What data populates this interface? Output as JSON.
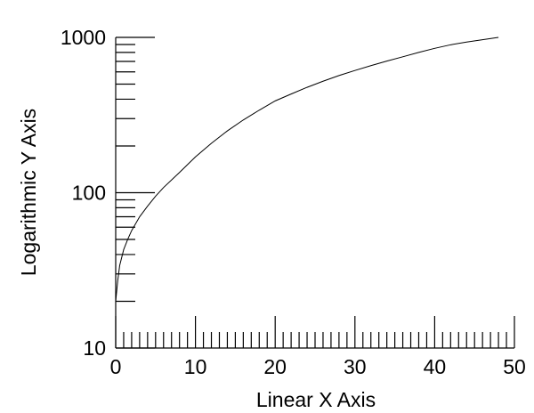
{
  "chart_data": {
    "type": "line",
    "title": "",
    "xlabel": "Linear X Axis",
    "ylabel": "Logarithmic Y Axis",
    "xscale": "linear",
    "yscale": "log",
    "xlim": [
      0,
      50
    ],
    "ylim": [
      10,
      1000
    ],
    "x_tick_labels": [
      "0",
      "10",
      "20",
      "30",
      "40",
      "50"
    ],
    "y_tick_labels": [
      "10",
      "100",
      "1000"
    ],
    "x_minor_step": 1,
    "x_major_step": 10,
    "grid": false,
    "legend": false,
    "series": [
      {
        "x": [
          0,
          0.25,
          0.5,
          1,
          1.5,
          2,
          3,
          4,
          5,
          6,
          8,
          10,
          12,
          14,
          16,
          18,
          20,
          22,
          24,
          26,
          28,
          30,
          32,
          34,
          36,
          38,
          40,
          42,
          44,
          46,
          48
        ],
        "y": [
          20,
          27,
          34,
          43,
          50,
          57,
          70,
          82,
          95,
          108,
          135,
          170,
          208,
          250,
          294,
          340,
          390,
          432,
          477,
          522,
          568,
          612,
          658,
          704,
          750,
          800,
          850,
          896,
          933,
          966,
          1000
        ]
      }
    ]
  }
}
